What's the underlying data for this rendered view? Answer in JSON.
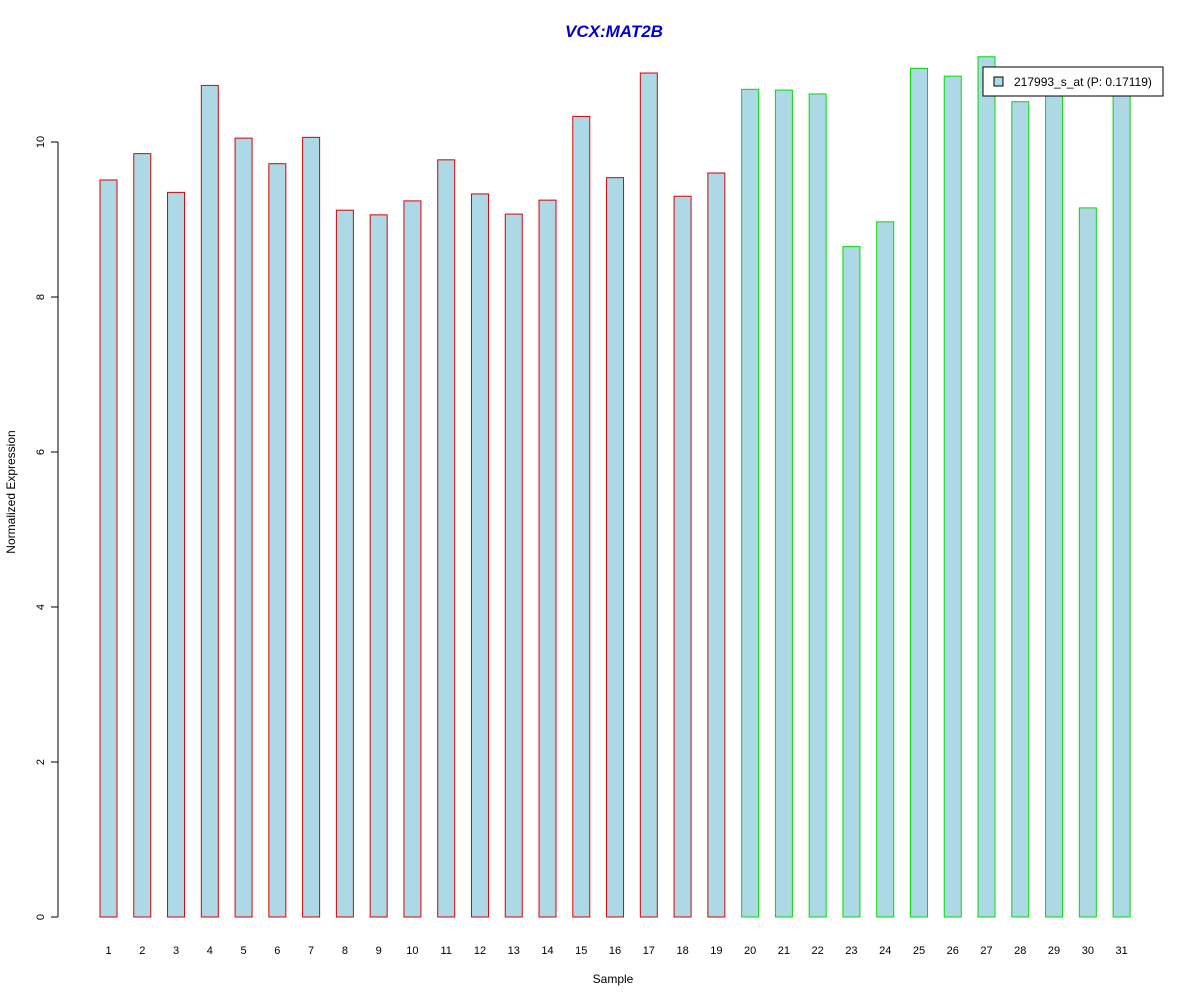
{
  "chart_data": {
    "type": "bar",
    "title": "VCX:MAT2B",
    "xlabel": "Sample",
    "ylabel": "Normalized Expression",
    "categories": [
      "1",
      "2",
      "3",
      "4",
      "5",
      "6",
      "7",
      "8",
      "9",
      "10",
      "11",
      "12",
      "13",
      "14",
      "15",
      "16",
      "17",
      "18",
      "19",
      "20",
      "21",
      "22",
      "23",
      "24",
      "25",
      "26",
      "27",
      "28",
      "29",
      "30",
      "31"
    ],
    "values": [
      9.51,
      9.85,
      9.35,
      10.73,
      10.05,
      9.72,
      10.06,
      9.12,
      9.06,
      9.24,
      9.77,
      9.33,
      9.07,
      9.25,
      10.33,
      9.54,
      10.89,
      9.3,
      9.6,
      10.68,
      10.67,
      10.62,
      8.65,
      8.97,
      10.95,
      10.85,
      11.1,
      10.52,
      10.6,
      9.15,
      10.82
    ],
    "groups": [
      "red",
      "red",
      "red",
      "red",
      "red",
      "red",
      "red",
      "red",
      "red",
      "red",
      "red",
      "red",
      "red",
      "red",
      "red",
      "red",
      "red",
      "red",
      "red",
      "green",
      "green",
      "green",
      "green",
      "green",
      "green",
      "green",
      "green",
      "green",
      "green",
      "green",
      "green"
    ],
    "ylim": [
      0,
      11.1
    ],
    "yticks": [
      "0",
      "2",
      "4",
      "6",
      "8",
      "10"
    ],
    "legend": {
      "label": "217993_s_at (P: 0.17119)",
      "position": "top-right"
    },
    "grid": false,
    "colors": {
      "title": "#0000cc",
      "bar_fill": "#add8e6",
      "bar_border_red": "#dd0000",
      "bar_border_green": "#00dd00",
      "axis": "#000000"
    }
  }
}
